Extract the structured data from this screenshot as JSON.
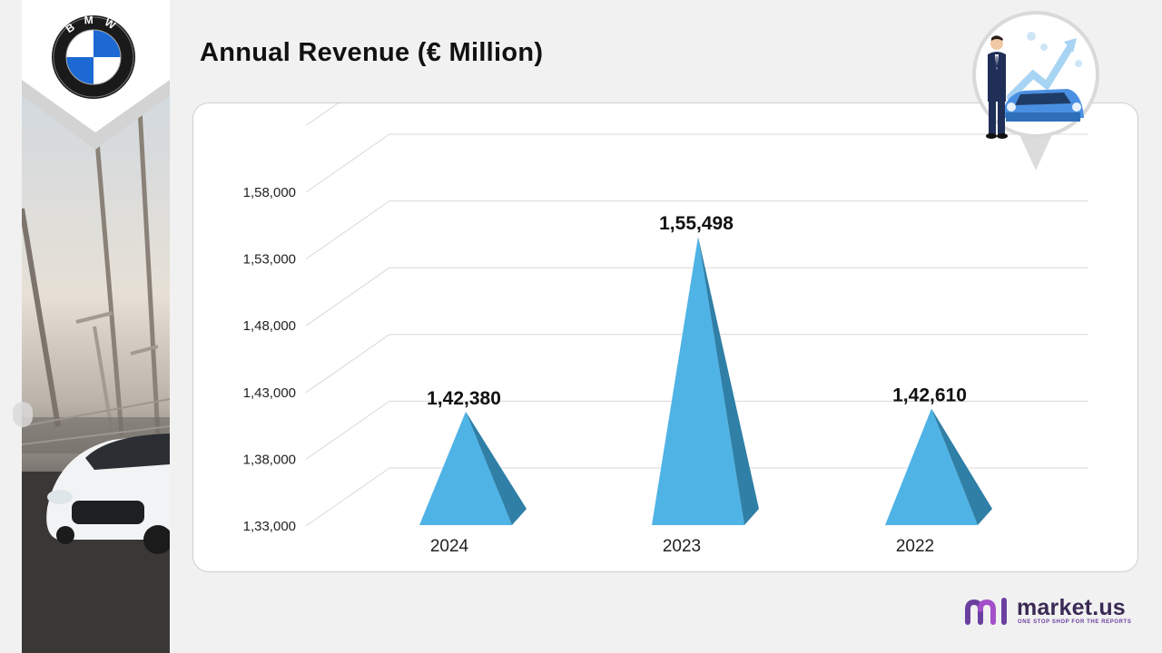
{
  "brand": {
    "logo_letters": "BMW"
  },
  "page": {
    "title": "Annual Revenue (€ Million)"
  },
  "chart_data": {
    "type": "bar",
    "title": "Annual Revenue (€ Million)",
    "categories": [
      "2024",
      "2023",
      "2022"
    ],
    "values": [
      142380,
      155498,
      142610
    ],
    "value_labels": [
      "1,42,380",
      "1,55,498",
      "1,42,610"
    ],
    "yticks": [
      133000,
      138000,
      143000,
      148000,
      153000,
      158000
    ],
    "ytick_labels": [
      "1,33,000",
      "1,38,000",
      "1,43,000",
      "1,48,000",
      "1,53,000",
      "1,58,000"
    ],
    "ylim": [
      133000,
      158000
    ],
    "grid": true,
    "bar_shape": "pyramid",
    "bar_color": "#4fb3e6",
    "bar_shadow_color": "#2f7fa6"
  },
  "footer": {
    "logo_name": "market.us",
    "logo_tagline": "ONE STOP SHOP FOR THE REPORTS",
    "logo_color": "#6b3fa0"
  }
}
